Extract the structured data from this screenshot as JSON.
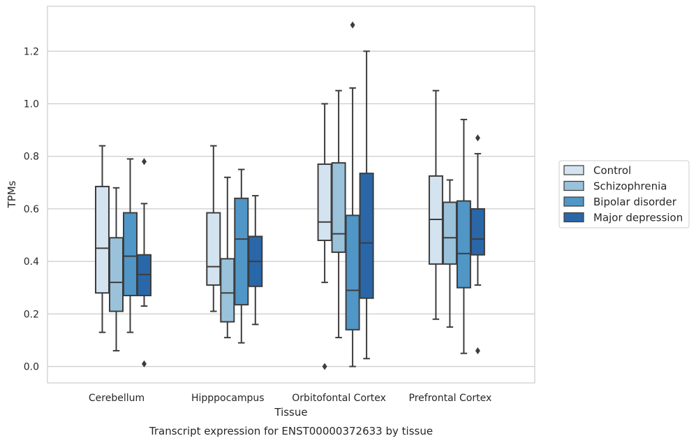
{
  "chart_data": {
    "type": "box",
    "caption": "Transcript expression for ENST00000372633 by tissue",
    "xlabel": "Tissue",
    "ylabel": "TPMs",
    "ylim": [
      -0.065,
      1.375
    ],
    "yticks": [
      0.0,
      0.2,
      0.4,
      0.6,
      0.8,
      1.0,
      1.2
    ],
    "ytick_labels": [
      "0.0",
      "0.2",
      "0.4",
      "0.6",
      "0.8",
      "1.0",
      "1.2"
    ],
    "grid": "horizontal",
    "legend_position": "right",
    "categories": [
      "Cerebellum",
      "Hipppocampus",
      "Orbitofontal Cortex",
      "Prefrontal Cortex"
    ],
    "series": [
      {
        "name": "Control",
        "color": "#d4e3f0",
        "boxes": [
          {
            "whislo": 0.13,
            "q1": 0.28,
            "med": 0.45,
            "q3": 0.685,
            "whishi": 0.84,
            "fliers": []
          },
          {
            "whislo": 0.21,
            "q1": 0.31,
            "med": 0.38,
            "q3": 0.585,
            "whishi": 0.84,
            "fliers": []
          },
          {
            "whislo": 0.32,
            "q1": 0.48,
            "med": 0.55,
            "q3": 0.77,
            "whishi": 1.0,
            "fliers": [
              0.0
            ]
          },
          {
            "whislo": 0.18,
            "q1": 0.39,
            "med": 0.56,
            "q3": 0.725,
            "whishi": 1.05,
            "fliers": []
          }
        ]
      },
      {
        "name": "Schizophrenia",
        "color": "#9ac2db",
        "boxes": [
          {
            "whislo": 0.06,
            "q1": 0.21,
            "med": 0.32,
            "q3": 0.49,
            "whishi": 0.68,
            "fliers": []
          },
          {
            "whislo": 0.11,
            "q1": 0.17,
            "med": 0.28,
            "q3": 0.41,
            "whishi": 0.72,
            "fliers": []
          },
          {
            "whislo": 0.11,
            "q1": 0.435,
            "med": 0.505,
            "q3": 0.775,
            "whishi": 1.05,
            "fliers": []
          },
          {
            "whislo": 0.15,
            "q1": 0.39,
            "med": 0.49,
            "q3": 0.625,
            "whishi": 0.71,
            "fliers": []
          }
        ]
      },
      {
        "name": "Bipolar disorder",
        "color": "#5096c7",
        "boxes": [
          {
            "whislo": 0.13,
            "q1": 0.27,
            "med": 0.42,
            "q3": 0.585,
            "whishi": 0.79,
            "fliers": []
          },
          {
            "whislo": 0.09,
            "q1": 0.235,
            "med": 0.485,
            "q3": 0.64,
            "whishi": 0.75,
            "fliers": []
          },
          {
            "whislo": 0.0,
            "q1": 0.14,
            "med": 0.29,
            "q3": 0.575,
            "whishi": 1.06,
            "fliers": [
              1.3
            ]
          },
          {
            "whislo": 0.05,
            "q1": 0.3,
            "med": 0.43,
            "q3": 0.63,
            "whishi": 0.94,
            "fliers": []
          }
        ]
      },
      {
        "name": "Major depression",
        "color": "#2967a9",
        "boxes": [
          {
            "whislo": 0.23,
            "q1": 0.27,
            "med": 0.35,
            "q3": 0.425,
            "whishi": 0.62,
            "fliers": [
              0.78,
              0.01
            ]
          },
          {
            "whislo": 0.16,
            "q1": 0.305,
            "med": 0.4,
            "q3": 0.495,
            "whishi": 0.65,
            "fliers": []
          },
          {
            "whislo": 0.03,
            "q1": 0.26,
            "med": 0.47,
            "q3": 0.735,
            "whishi": 1.2,
            "fliers": []
          },
          {
            "whislo": 0.31,
            "q1": 0.425,
            "med": 0.485,
            "q3": 0.6,
            "whishi": 0.81,
            "fliers": [
              0.87,
              0.06
            ]
          }
        ]
      }
    ]
  }
}
